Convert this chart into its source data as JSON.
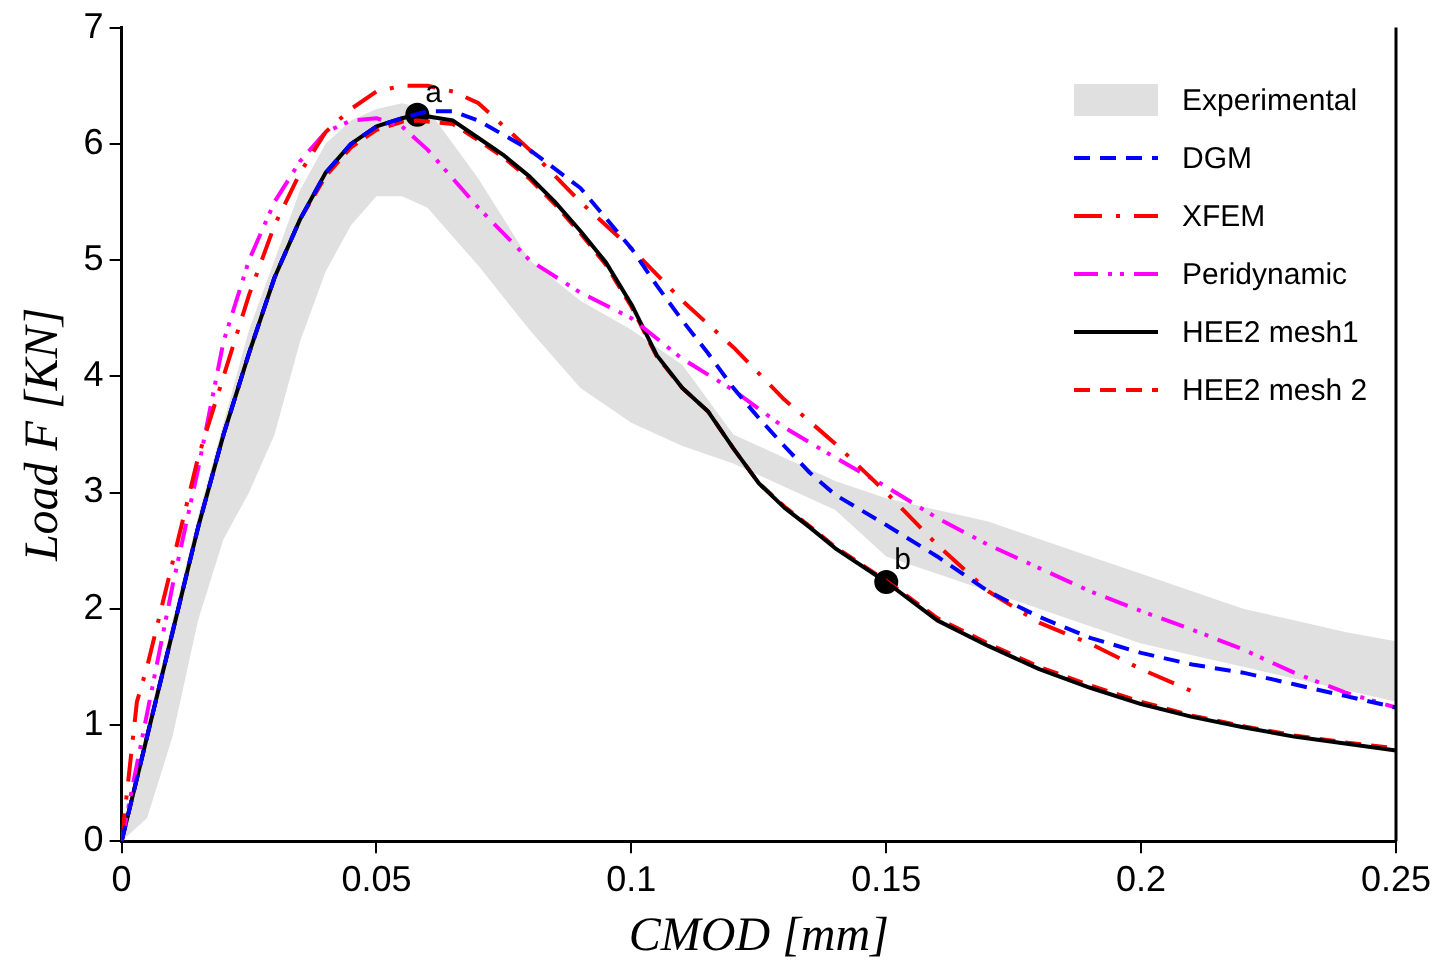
{
  "chart_data": {
    "type": "line",
    "xlabel": "CMOD [mm]",
    "ylabel": "Load F [KN]",
    "xlim": [
      0,
      0.25
    ],
    "xticks": [
      0,
      0.05,
      0.1,
      0.15,
      0.2,
      0.25
    ],
    "ylim": [
      0,
      7
    ],
    "yticks": [
      0,
      1,
      2,
      3,
      4,
      5,
      6,
      7
    ],
    "grid": false,
    "legend": "top right",
    "marker": "none",
    "series": [
      {
        "name": "Experimental",
        "type": "area",
        "color": "#e0e0e0",
        "x": [
          0,
          0.005,
          0.01,
          0.015,
          0.02,
          0.025,
          0.03,
          0.035,
          0.04,
          0.045,
          0.05,
          0.055,
          0.06,
          0.065,
          0.07,
          0.08,
          0.09,
          0.1,
          0.11,
          0.12,
          0.13,
          0.14,
          0.15,
          0.16,
          0.17,
          0.18,
          0.19,
          0.2,
          0.21,
          0.22,
          0.23,
          0.24,
          0.25
        ],
        "values": [
          null,
          null,
          null,
          null,
          null,
          null,
          null,
          null,
          null,
          null,
          null,
          null,
          null,
          null,
          null,
          null,
          null,
          null,
          null,
          null,
          null,
          null,
          null,
          null,
          null,
          null,
          null,
          null,
          null,
          null,
          null,
          null,
          null
        ],
        "upper": [
          0,
          1.0,
          1.9,
          2.8,
          3.6,
          4.4,
          5.0,
          5.6,
          6.0,
          6.2,
          6.3,
          6.35,
          6.3,
          6.0,
          5.7,
          5.0,
          4.65,
          4.4,
          4.1,
          3.5,
          3.3,
          3.1,
          2.95,
          2.85,
          2.75,
          2.6,
          2.45,
          2.3,
          2.15,
          2.0,
          1.9,
          1.8,
          1.72
        ],
        "lower": [
          0,
          0.2,
          0.9,
          1.9,
          2.6,
          3.0,
          3.5,
          4.3,
          4.9,
          5.3,
          5.55,
          5.55,
          5.45,
          5.2,
          4.95,
          4.4,
          3.9,
          3.6,
          3.4,
          3.25,
          3.05,
          2.85,
          2.45,
          2.3,
          2.15,
          2.0,
          1.85,
          1.7,
          1.6,
          1.5,
          1.4,
          1.3,
          1.2
        ]
      },
      {
        "name": "DGM",
        "color": "#0000ff",
        "line_style": "dashed",
        "x": [
          0,
          0.005,
          0.01,
          0.015,
          0.02,
          0.025,
          0.03,
          0.035,
          0.04,
          0.045,
          0.05,
          0.055,
          0.06,
          0.065,
          0.07,
          0.08,
          0.09,
          0.1,
          0.105,
          0.11,
          0.115,
          0.12,
          0.125,
          0.13,
          0.135,
          0.14,
          0.15,
          0.16,
          0.17,
          0.18,
          0.19,
          0.2,
          0.21,
          0.22,
          0.23,
          0.24,
          0.25
        ],
        "values": [
          0,
          0.9,
          1.8,
          2.7,
          3.5,
          4.2,
          4.85,
          5.35,
          5.75,
          6.0,
          6.15,
          6.22,
          6.28,
          6.28,
          6.2,
          5.95,
          5.62,
          5.1,
          4.78,
          4.48,
          4.2,
          3.9,
          3.64,
          3.4,
          3.17,
          2.98,
          2.72,
          2.45,
          2.15,
          1.93,
          1.75,
          1.62,
          1.52,
          1.45,
          1.35,
          1.25,
          1.15
        ]
      },
      {
        "name": "XFEM",
        "color": "#ff0000",
        "line_style": "dashdot",
        "x": [
          0,
          0.003,
          0.005,
          0.01,
          0.015,
          0.02,
          0.025,
          0.03,
          0.035,
          0.04,
          0.045,
          0.05,
          0.055,
          0.06,
          0.065,
          0.07,
          0.08,
          0.09,
          0.1,
          0.11,
          0.12,
          0.13,
          0.14,
          0.15,
          0.16,
          0.17,
          0.18,
          0.19,
          0.2,
          0.21
        ],
        "values": [
          0,
          1.2,
          1.5,
          2.4,
          3.3,
          4.0,
          4.7,
          5.3,
          5.75,
          6.1,
          6.3,
          6.45,
          6.5,
          6.5,
          6.45,
          6.35,
          5.95,
          5.5,
          5.1,
          4.65,
          4.25,
          3.8,
          3.42,
          3.0,
          2.55,
          2.15,
          1.88,
          1.7,
          1.48,
          1.29
        ]
      },
      {
        "name": "Peridynamic",
        "color": "#ff00ff",
        "line_style": "dashdotdot",
        "x": [
          0,
          0.005,
          0.01,
          0.015,
          0.02,
          0.025,
          0.03,
          0.035,
          0.04,
          0.045,
          0.05,
          0.055,
          0.06,
          0.065,
          0.07,
          0.08,
          0.09,
          0.1,
          0.11,
          0.12,
          0.13,
          0.14,
          0.15,
          0.16,
          0.17,
          0.18,
          0.19,
          0.2,
          0.21,
          0.22,
          0.23,
          0.24,
          0.25
        ],
        "values": [
          0,
          1.1,
          2.2,
          3.2,
          4.3,
          5.0,
          5.5,
          5.85,
          6.1,
          6.2,
          6.22,
          6.15,
          5.95,
          5.7,
          5.45,
          5.0,
          4.72,
          4.5,
          4.15,
          3.88,
          3.56,
          3.3,
          3.05,
          2.78,
          2.55,
          2.35,
          2.15,
          1.98,
          1.82,
          1.65,
          1.45,
          1.28,
          1.15
        ]
      },
      {
        "name": "HEE2 mesh1",
        "color": "#000000",
        "line_style": "solid",
        "x": [
          0,
          0.005,
          0.01,
          0.015,
          0.02,
          0.025,
          0.03,
          0.035,
          0.04,
          0.045,
          0.05,
          0.055,
          0.058,
          0.065,
          0.07,
          0.075,
          0.08,
          0.085,
          0.09,
          0.095,
          0.1,
          0.105,
          0.11,
          0.115,
          0.12,
          0.125,
          0.13,
          0.135,
          0.14,
          0.15,
          0.16,
          0.17,
          0.18,
          0.19,
          0.2,
          0.21,
          0.22,
          0.23,
          0.24,
          0.25
        ],
        "values": [
          0,
          0.9,
          1.8,
          2.7,
          3.5,
          4.2,
          4.85,
          5.35,
          5.75,
          6.0,
          6.15,
          6.22,
          6.25,
          6.2,
          6.05,
          5.9,
          5.72,
          5.5,
          5.25,
          4.98,
          4.62,
          4.18,
          3.9,
          3.7,
          3.38,
          3.08,
          2.87,
          2.7,
          2.52,
          2.23,
          1.9,
          1.68,
          1.48,
          1.32,
          1.18,
          1.07,
          0.98,
          0.9,
          0.84,
          0.78
        ]
      },
      {
        "name": "HEE2 mesh 2",
        "color": "#ff0000",
        "line_style": "dashed",
        "x": [
          0,
          0.005,
          0.01,
          0.015,
          0.02,
          0.025,
          0.03,
          0.035,
          0.04,
          0.045,
          0.05,
          0.055,
          0.058,
          0.065,
          0.07,
          0.075,
          0.08,
          0.085,
          0.09,
          0.095,
          0.1,
          0.105,
          0.11,
          0.115,
          0.12,
          0.125,
          0.13,
          0.135,
          0.14,
          0.15,
          0.16,
          0.17,
          0.18,
          0.19,
          0.2,
          0.21,
          0.22,
          0.23,
          0.24,
          0.25
        ],
        "values": [
          0,
          0.9,
          1.8,
          2.7,
          3.5,
          4.2,
          4.85,
          5.35,
          5.72,
          5.97,
          6.12,
          6.19,
          6.2,
          6.17,
          6.03,
          5.88,
          5.7,
          5.48,
          5.23,
          4.96,
          4.6,
          4.17,
          3.9,
          3.7,
          3.38,
          3.08,
          2.88,
          2.71,
          2.53,
          2.24,
          1.92,
          1.7,
          1.5,
          1.34,
          1.2,
          1.08,
          0.99,
          0.91,
          0.85,
          0.8
        ]
      },
      {
        "type": "scatter",
        "color": "#000000",
        "marker": "circle",
        "x": [
          0.058,
          0.15
        ],
        "values": [
          6.25,
          2.23
        ]
      }
    ],
    "annotations": [
      {
        "text": "a",
        "x": 0.058,
        "y": 6.25
      },
      {
        "text": "b",
        "x": 0.15,
        "y": 2.23
      }
    ]
  }
}
